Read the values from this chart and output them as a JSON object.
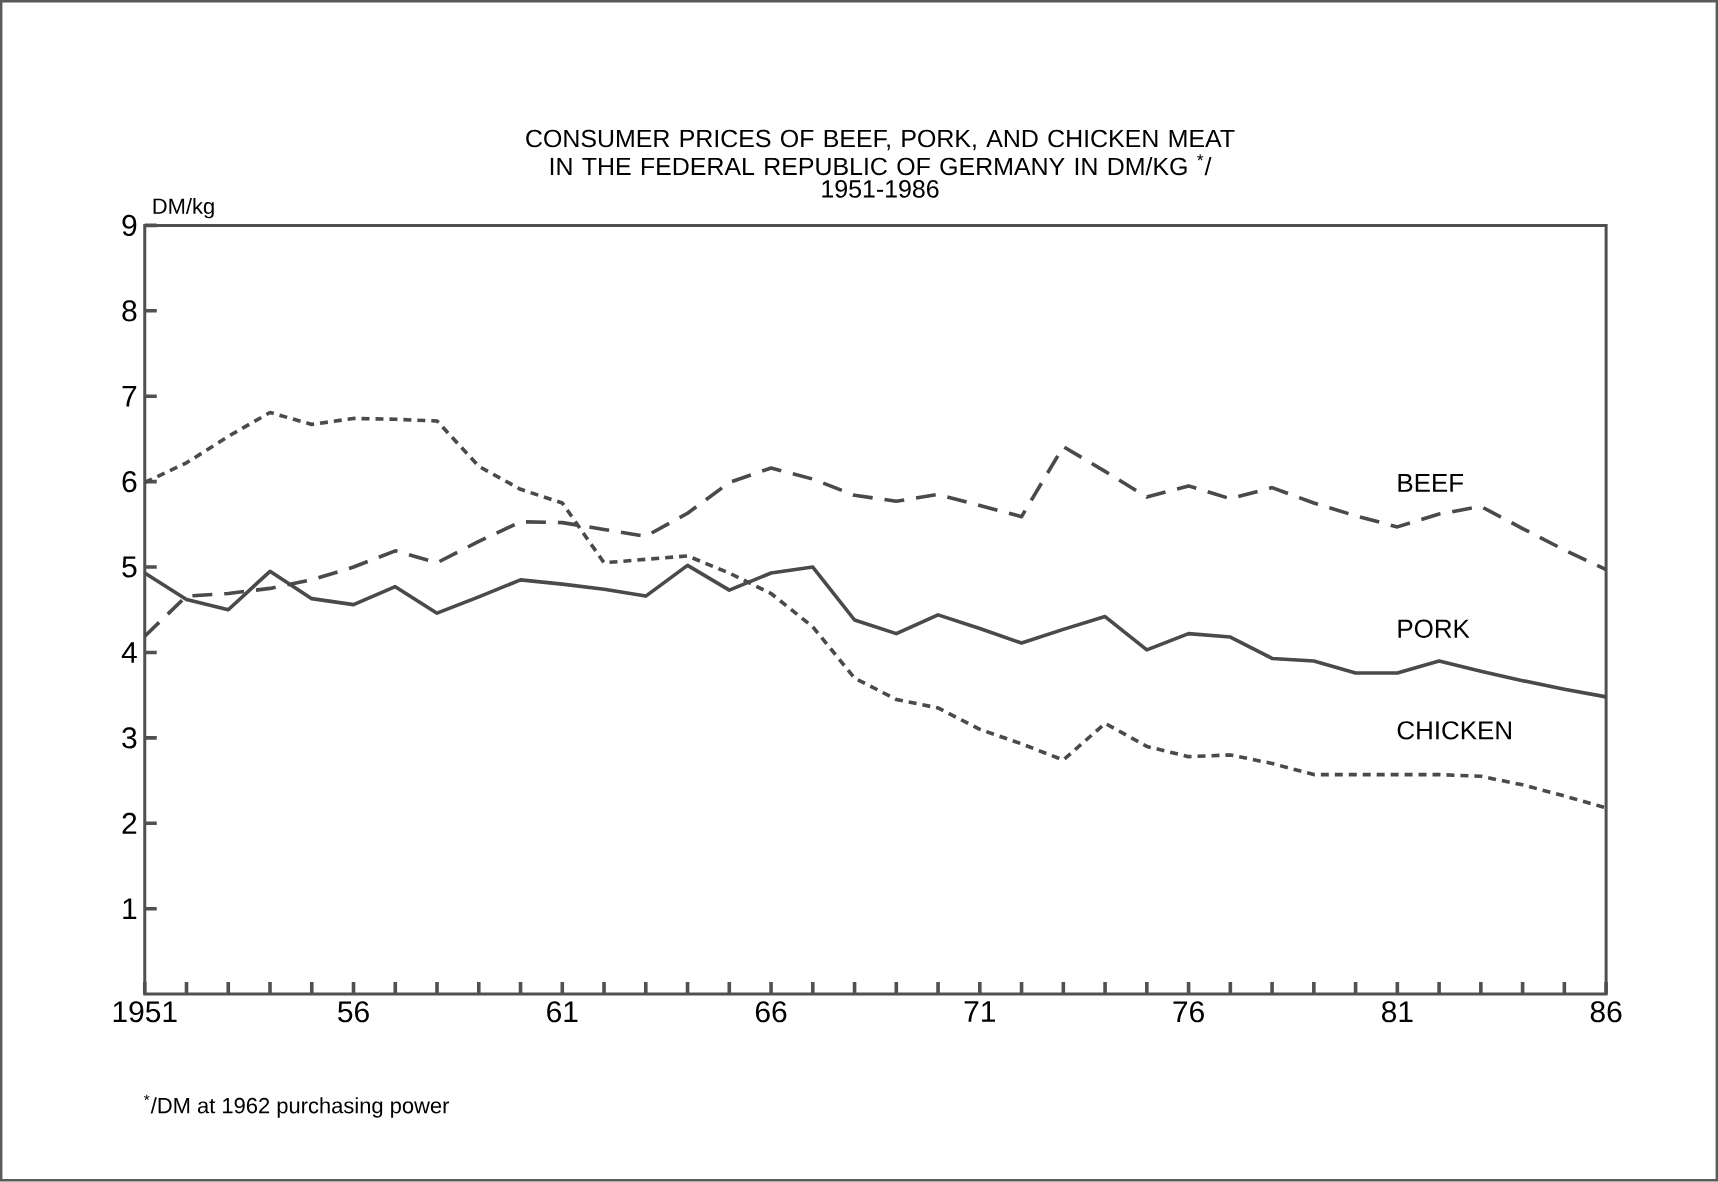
{
  "chart_data": {
    "type": "line",
    "title": "CONSUMER PRICES OF BEEF, PORK, AND CHICKEN MEAT IN THE FEDERAL REPUBLIC OF GERMANY IN DM/KG $^{*}$/",
    "subtitle": "1951-1986",
    "ylabel": "DM/kg",
    "annotations": [
      "$^{*}$/DM at 1962 purchasing power"
    ],
    "x": [
      1951,
      1952,
      1953,
      1954,
      1955,
      1956,
      1957,
      1958,
      1959,
      1960,
      1961,
      1962,
      1963,
      1964,
      1965,
      1966,
      1967,
      1968,
      1969,
      1970,
      1971,
      1972,
      1973,
      1974,
      1975,
      1976,
      1977,
      1978,
      1979,
      1980,
      1981,
      1982,
      1983,
      1984,
      1985,
      1986
    ],
    "series": [
      {
        "name": "BEEF",
        "color": "#4a4a4a",
        "line_style": "dashed",
        "values": [
          4.19,
          4.66,
          4.69,
          4.75,
          4.85,
          5.0,
          5.19,
          5.05,
          5.3,
          5.53,
          5.52,
          5.44,
          5.36,
          5.63,
          5.99,
          6.16,
          6.03,
          5.84,
          5.77,
          5.85,
          5.72,
          5.59,
          6.41,
          6.12,
          5.82,
          5.95,
          5.8,
          5.93,
          5.75,
          5.6,
          5.47,
          5.62,
          5.71,
          5.45,
          5.2,
          4.97
        ]
      },
      {
        "name": "PORK",
        "color": "#4a4a4a",
        "line_style": "solid",
        "values": [
          4.93,
          4.62,
          4.5,
          4.95,
          4.63,
          4.56,
          4.77,
          4.46,
          4.65,
          4.85,
          4.8,
          4.74,
          4.66,
          5.02,
          4.73,
          4.93,
          5.0,
          4.38,
          4.22,
          4.44,
          4.28,
          4.11,
          4.27,
          4.42,
          4.03,
          4.22,
          4.18,
          3.93,
          3.9,
          3.76,
          3.76,
          3.9,
          3.78,
          3.67,
          3.57,
          3.48
        ]
      },
      {
        "name": "CHICKEN",
        "color": "#4a4a4a",
        "line_style": "dotted",
        "values": [
          5.99,
          6.22,
          6.53,
          6.81,
          6.67,
          6.74,
          6.73,
          6.71,
          6.18,
          5.91,
          5.75,
          5.05,
          5.09,
          5.13,
          4.93,
          4.69,
          4.3,
          3.7,
          3.45,
          3.35,
          3.1,
          2.93,
          2.74,
          3.17,
          2.9,
          2.78,
          2.8,
          2.7,
          2.57,
          2.57,
          2.57,
          2.57,
          2.55,
          2.45,
          2.32,
          2.18
        ]
      }
    ],
    "xlim": [
      1951,
      1986
    ],
    "xticks": [
      {
        "value": 1951,
        "label": "1951"
      },
      {
        "value": 1952,
        "label": null
      },
      {
        "value": 1953,
        "label": null
      },
      {
        "value": 1954,
        "label": null
      },
      {
        "value": 1955,
        "label": null
      },
      {
        "value": 1956,
        "label": "56"
      },
      {
        "value": 1957,
        "label": null
      },
      {
        "value": 1958,
        "label": null
      },
      {
        "value": 1959,
        "label": null
      },
      {
        "value": 1960,
        "label": null
      },
      {
        "value": 1961,
        "label": "61"
      },
      {
        "value": 1962,
        "label": null
      },
      {
        "value": 1963,
        "label": null
      },
      {
        "value": 1964,
        "label": null
      },
      {
        "value": 1965,
        "label": null
      },
      {
        "value": 1966,
        "label": "66"
      },
      {
        "value": 1967,
        "label": null
      },
      {
        "value": 1968,
        "label": null
      },
      {
        "value": 1969,
        "label": null
      },
      {
        "value": 1970,
        "label": null
      },
      {
        "value": 1971,
        "label": "71"
      },
      {
        "value": 1972,
        "label": null
      },
      {
        "value": 1973,
        "label": null
      },
      {
        "value": 1974,
        "label": null
      },
      {
        "value": 1975,
        "label": null
      },
      {
        "value": 1976,
        "label": "76"
      },
      {
        "value": 1977,
        "label": null
      },
      {
        "value": 1978,
        "label": null
      },
      {
        "value": 1979,
        "label": null
      },
      {
        "value": 1980,
        "label": null
      },
      {
        "value": 1981,
        "label": "81"
      },
      {
        "value": 1982,
        "label": null
      },
      {
        "value": 1983,
        "label": null
      },
      {
        "value": 1984,
        "label": null
      },
      {
        "value": 1985,
        "label": null
      },
      {
        "value": 1986,
        "label": "86"
      }
    ],
    "ylim": [
      0,
      9
    ],
    "yticks": [
      1,
      2,
      3,
      4,
      5,
      6,
      7,
      8,
      9
    ],
    "grid": false,
    "legend": false,
    "marker": "none"
  }
}
